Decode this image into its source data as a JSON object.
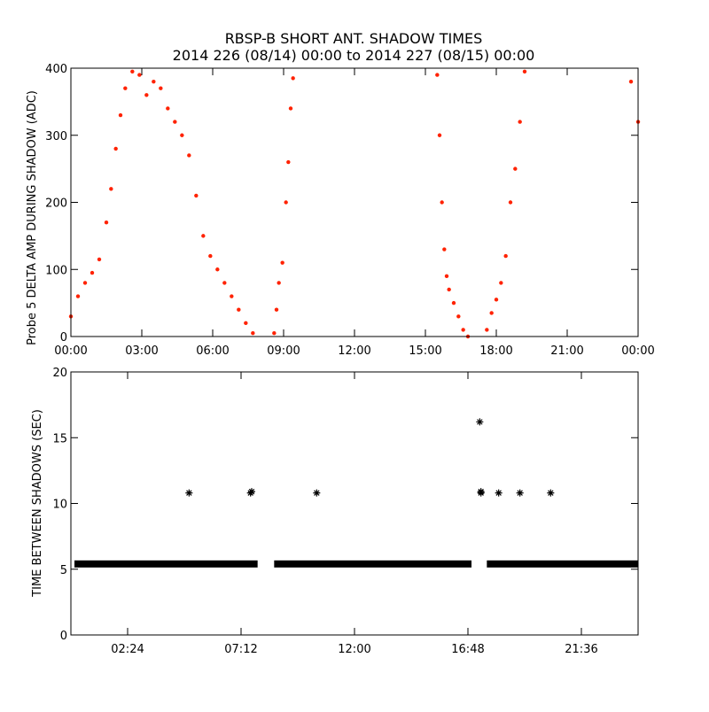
{
  "title_line1": "RBSP-B SHORT ANT. SHADOW TIMES",
  "title_line2": "2014 226 (08/14) 00:00 to 2014 227 (08/15) 00:00",
  "colors": {
    "top_series": "#ff2200",
    "bottom_series": "#000000",
    "axes": "#000000",
    "background": "#ffffff"
  },
  "chart_data": [
    {
      "type": "scatter",
      "ylabel": "Probe 5 DELTA AMP DURING SHADOW (ADC)",
      "xlim": [
        0,
        24
      ],
      "ylim": [
        0,
        400
      ],
      "xticks": [
        0,
        3,
        6,
        9,
        12,
        15,
        18,
        21,
        24
      ],
      "xtick_labels": [
        "00:00",
        "03:00",
        "06:00",
        "09:00",
        "12:00",
        "15:00",
        "18:00",
        "21:00",
        "00:00"
      ],
      "yticks": [
        0,
        100,
        200,
        300,
        400
      ],
      "ytick_labels": [
        "0",
        "100",
        "200",
        "300",
        "400"
      ],
      "marker": "dot",
      "color": "#ff2200",
      "x": [
        0.0,
        0.3,
        0.6,
        0.9,
        1.2,
        1.5,
        1.7,
        1.9,
        2.1,
        2.3,
        2.6,
        2.9,
        3.2,
        3.5,
        3.8,
        4.1,
        4.4,
        4.7,
        5.0,
        5.3,
        5.6,
        5.9,
        6.2,
        6.5,
        6.8,
        7.1,
        7.4,
        7.7,
        8.6,
        8.7,
        8.8,
        8.95,
        9.1,
        9.2,
        9.3,
        9.4,
        15.5,
        15.6,
        15.7,
        15.8,
        15.9,
        16.0,
        16.2,
        16.4,
        16.6,
        16.8,
        17.6,
        17.8,
        18.0,
        18.2,
        18.4,
        18.6,
        18.8,
        19.0,
        19.2,
        23.7,
        24.0
      ],
      "y": [
        30,
        60,
        80,
        95,
        115,
        170,
        220,
        280,
        330,
        370,
        395,
        390,
        360,
        380,
        370,
        340,
        320,
        300,
        270,
        210,
        150,
        120,
        100,
        80,
        60,
        40,
        20,
        5,
        5,
        40,
        80,
        110,
        200,
        260,
        340,
        385,
        390,
        300,
        200,
        130,
        90,
        70,
        50,
        30,
        10,
        0,
        10,
        35,
        55,
        80,
        120,
        200,
        250,
        320,
        395,
        380,
        320
      ]
    },
    {
      "type": "scatter",
      "ylabel": "TIME BETWEEN SHADOWS (SEC)",
      "xlim": [
        0,
        24
      ],
      "ylim": [
        0,
        20
      ],
      "xticks": [
        2.4,
        7.2,
        12.0,
        16.8,
        21.6
      ],
      "xtick_labels": [
        "02:24",
        "07:12",
        "12:00",
        "16:48",
        "21:36"
      ],
      "yticks": [
        0,
        5,
        10,
        15,
        20
      ],
      "ytick_labels": [
        "0",
        "5",
        "10",
        "15",
        "20"
      ],
      "marker": "star",
      "color": "#000000",
      "baseline_value": 5.4,
      "baseline_ranges": [
        [
          0.15,
          7.9
        ],
        [
          8.6,
          16.95
        ],
        [
          17.6,
          24.0
        ]
      ],
      "x": [
        5.0,
        7.6,
        7.65,
        10.4,
        17.3,
        17.35,
        17.35,
        18.1,
        19.0,
        20.3
      ],
      "y": [
        10.8,
        10.8,
        10.9,
        10.8,
        16.2,
        10.8,
        10.9,
        10.8,
        10.8,
        10.8
      ]
    }
  ]
}
